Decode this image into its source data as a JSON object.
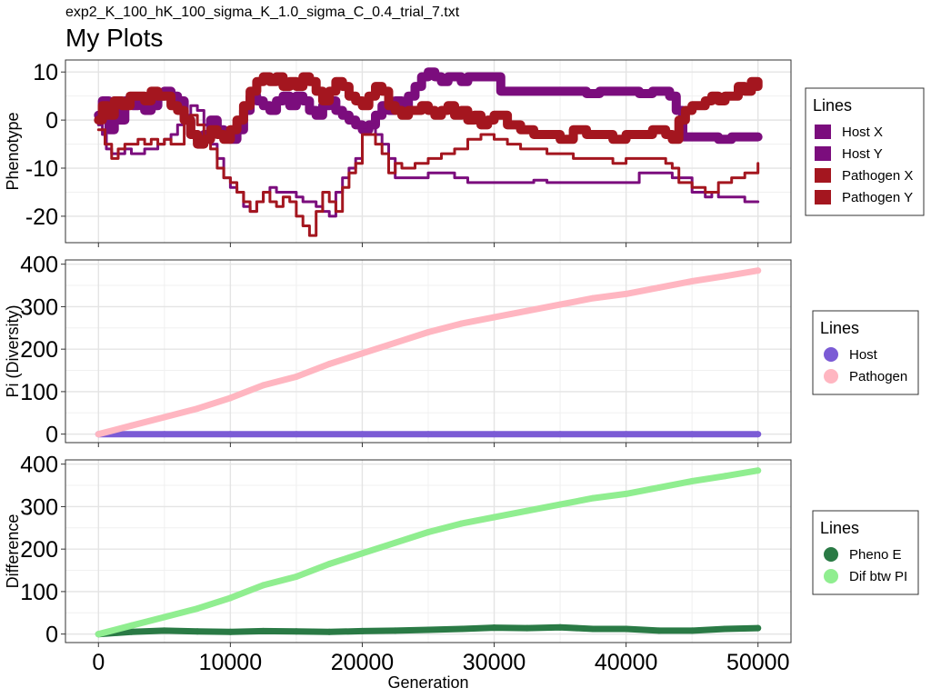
{
  "subtitle": "exp2_K_100_hK_100_sigma_K_1.0_sigma_C_0.4_trial_7.txt",
  "title": "My Plots",
  "chart_data": [
    {
      "type": "line",
      "ylabel": "Phenotype",
      "xlabel": "",
      "xlim": [
        -2500,
        52500
      ],
      "ylim": [
        -25.5,
        12.5
      ],
      "xticks": [
        0,
        10000,
        20000,
        30000,
        40000,
        50000
      ],
      "yticks": [
        10,
        0,
        -10,
        -20
      ],
      "grid": true,
      "legend": {
        "title": "Lines",
        "position": "right",
        "shape": "square",
        "entries": [
          {
            "label": "Host X",
            "color": "#7b0d7d"
          },
          {
            "label": "Host Y",
            "color": "#7b0d7d"
          },
          {
            "label": "Pathogen X",
            "color": "#a4161f"
          },
          {
            "label": "Pathogen Y",
            "color": "#a4161f"
          }
        ]
      },
      "series": [
        {
          "name": "Host X",
          "color": "#7b0d7d",
          "width": 10,
          "x": [
            0,
            300,
            800,
            1200,
            1600,
            2000,
            2600,
            3000,
            3500,
            4000,
            4500,
            5000,
            5500,
            6000,
            6500,
            7000,
            7500,
            8000,
            8500,
            9000,
            9500,
            10000,
            10500,
            11000,
            11500,
            12000,
            12500,
            13000,
            13500,
            14000,
            14500,
            15000,
            15500,
            16000,
            16500,
            17000,
            17500,
            18000,
            18500,
            19000,
            19500,
            20000,
            20500,
            21000,
            21500,
            22000,
            22500,
            23000,
            23500,
            24000,
            24500,
            25000,
            25500,
            26000,
            26500,
            27000,
            27500,
            28000,
            28500,
            29000,
            29500,
            30000,
            30500,
            31000,
            32000,
            33000,
            34000,
            35000,
            36000,
            37000,
            38000,
            39000,
            40000,
            41000,
            42000,
            42800,
            43300,
            43800,
            44300,
            45000,
            46000,
            47000,
            48000,
            49000,
            50000
          ],
          "y": [
            1,
            4,
            -2,
            4,
            0,
            4,
            3,
            4,
            2,
            3,
            5,
            6,
            5,
            4,
            0,
            -3,
            -4,
            -3,
            0,
            -2,
            -3,
            -4,
            -2,
            2,
            5,
            4,
            3,
            2,
            4,
            5,
            3,
            5,
            4,
            2,
            1,
            3,
            4,
            2,
            1,
            0,
            -1,
            -2,
            -1,
            1,
            3,
            2,
            4,
            3,
            5,
            7,
            9,
            10,
            9,
            8,
            9,
            9,
            8,
            9,
            9,
            9,
            9,
            9,
            6,
            6,
            6,
            6,
            6,
            6,
            6,
            5.5,
            6,
            6,
            6,
            5.5,
            6,
            6,
            5,
            2,
            -3.5,
            -3.5,
            -3.5,
            -4,
            -3.5,
            -3.5,
            -3.5
          ]
        },
        {
          "name": "Host Y",
          "color": "#7b0d7d",
          "width": 3,
          "x": [
            0,
            300,
            600,
            1000,
            1500,
            2000,
            2500,
            3000,
            3500,
            4000,
            4500,
            5000,
            5500,
            6000,
            6500,
            7000,
            7500,
            8000,
            8500,
            9000,
            9500,
            10000,
            10500,
            11000,
            11500,
            12000,
            12500,
            13000,
            13500,
            14000,
            14500,
            15000,
            15500,
            16000,
            16500,
            17000,
            17500,
            18000,
            18500,
            19000,
            19500,
            20000,
            20500,
            21000,
            21500,
            22000,
            22500,
            23000,
            24000,
            25000,
            26000,
            27000,
            28000,
            29000,
            30000,
            31000,
            32000,
            33000,
            34000,
            35000,
            36000,
            37000,
            38000,
            39000,
            40000,
            41000,
            42000,
            43000,
            43500,
            44000,
            45000,
            46000,
            46500,
            47000,
            48000,
            49000,
            50000
          ],
          "y": [
            -1,
            -3,
            -6,
            -7,
            -7,
            -6,
            -7,
            -7,
            -6,
            -6,
            -5,
            -4,
            -3,
            -1,
            1,
            3,
            2,
            -1,
            -5,
            -8,
            -12,
            -14,
            -15,
            -18,
            -19,
            -17,
            -15,
            -14,
            -15,
            -15,
            -15,
            -16,
            -17,
            -17,
            -18,
            -19,
            -20,
            -15,
            -12,
            -10,
            -8,
            -2,
            -1,
            -3,
            -5,
            -8,
            -12,
            -12,
            -12,
            -11,
            -11,
            -12,
            -13,
            -13,
            -13,
            -13,
            -13,
            -12.5,
            -13,
            -13,
            -13,
            -13,
            -13,
            -13,
            -13,
            -11,
            -11,
            -11,
            -12,
            -12,
            -15,
            -16,
            -15,
            -16,
            -16,
            -17,
            -17
          ]
        },
        {
          "name": "Pathogen X",
          "color": "#a4161f",
          "width": 10,
          "x": [
            0,
            300,
            700,
            1200,
            1800,
            2400,
            3000,
            3500,
            4000,
            4500,
            5000,
            5500,
            6000,
            6500,
            7000,
            7500,
            8000,
            8500,
            9000,
            9500,
            10000,
            10500,
            11000,
            11500,
            12000,
            12500,
            13000,
            13500,
            14000,
            14500,
            15000,
            15500,
            16000,
            16500,
            17000,
            17500,
            18000,
            18500,
            19000,
            19500,
            20000,
            20500,
            21000,
            21500,
            22000,
            22500,
            23000,
            23500,
            24000,
            24500,
            25000,
            25500,
            26000,
            26500,
            27000,
            27500,
            28000,
            28500,
            29000,
            29500,
            30000,
            31000,
            32000,
            33000,
            34000,
            35000,
            36000,
            37000,
            38000,
            39000,
            40000,
            41000,
            42000,
            43000,
            43500,
            44000,
            44500,
            45000,
            45500,
            46000,
            46500,
            47000,
            47500,
            48000,
            48500,
            49000,
            49500,
            50000
          ],
          "y": [
            0,
            3,
            1,
            4,
            3,
            5,
            5,
            4,
            6,
            5,
            5,
            3,
            2,
            0,
            -3,
            -5,
            -4,
            -2,
            -3,
            -4,
            -2,
            0,
            3,
            6,
            8,
            9,
            8,
            9,
            7,
            8,
            7,
            9,
            8,
            6,
            4,
            6,
            8,
            7,
            5,
            4,
            3,
            5,
            7,
            6,
            3,
            2,
            1,
            2,
            2,
            3,
            2,
            1,
            2,
            3,
            1,
            2,
            0,
            1,
            -1,
            0,
            1,
            -1,
            -2,
            -3,
            -3,
            -4,
            -2,
            -3,
            -3,
            -4,
            -3,
            -3,
            -2,
            -3,
            -4,
            0,
            2,
            3,
            3,
            4,
            5,
            4,
            5,
            5,
            7,
            6,
            8,
            7
          ]
        },
        {
          "name": "Pathogen Y",
          "color": "#a4161f",
          "width": 3,
          "x": [
            0,
            500,
            1000,
            1500,
            2000,
            2500,
            3000,
            3500,
            4000,
            4500,
            5000,
            5500,
            6000,
            6500,
            7000,
            7500,
            8000,
            8500,
            9000,
            9500,
            10000,
            10500,
            11000,
            11500,
            12000,
            12500,
            13000,
            13500,
            14000,
            14500,
            15000,
            15500,
            16000,
            16500,
            17000,
            17500,
            18000,
            18500,
            19000,
            19500,
            20000,
            20500,
            21000,
            21500,
            22000,
            22500,
            23000,
            24000,
            25000,
            26000,
            27000,
            28000,
            29000,
            30000,
            31000,
            32000,
            33000,
            34000,
            35000,
            36000,
            37000,
            38000,
            39000,
            40000,
            41000,
            42000,
            43000,
            43500,
            44000,
            45000,
            46000,
            47000,
            48000,
            49000,
            50000
          ],
          "y": [
            -2,
            -5,
            -8,
            -6,
            -5,
            -5,
            -4,
            -5,
            -4,
            -5,
            -4,
            -5,
            -5,
            0,
            1,
            -1,
            -4,
            -6,
            -10,
            -12,
            -13,
            -15,
            -17,
            -19,
            -17,
            -15,
            -17,
            -18,
            -16,
            -17,
            -20,
            -22,
            -24,
            -19,
            -15,
            -17,
            -19,
            -14,
            -11,
            -9,
            -3,
            -3,
            -5,
            -7,
            -11,
            -9,
            -10,
            -9,
            -8,
            -7,
            -6,
            -4,
            -3,
            -4,
            -5,
            -6,
            -6,
            -7,
            -7,
            -8,
            -8,
            -8,
            -9,
            -8,
            -8,
            -8,
            -9,
            -10,
            -13,
            -14,
            -15,
            -13,
            -12,
            -11,
            -9
          ]
        }
      ]
    },
    {
      "type": "scatter",
      "ylabel": "Pi (Diversity)",
      "xlabel": "",
      "xlim": [
        -2500,
        52500
      ],
      "ylim": [
        -20,
        410
      ],
      "xticks": [
        0,
        10000,
        20000,
        30000,
        40000,
        50000
      ],
      "yticks": [
        400,
        300,
        200,
        100,
        0
      ],
      "grid": true,
      "legend": {
        "title": "Lines",
        "position": "right",
        "shape": "circle",
        "entries": [
          {
            "label": "Host",
            "color": "#7b5bd5"
          },
          {
            "label": "Pathogen",
            "color": "#ffb6c1"
          }
        ]
      },
      "series": [
        {
          "name": "Host",
          "color": "#7b5bd5",
          "x": [
            0,
            5000,
            10000,
            15000,
            20000,
            25000,
            30000,
            35000,
            40000,
            45000,
            50000
          ],
          "y": [
            0,
            0,
            0,
            0,
            0,
            0,
            0,
            0,
            0,
            0,
            0
          ]
        },
        {
          "name": "Pathogen",
          "color": "#ffb6c1",
          "x": [
            0,
            2500,
            5000,
            7500,
            10000,
            12500,
            15000,
            17500,
            20000,
            22500,
            25000,
            27500,
            30000,
            32500,
            35000,
            37500,
            40000,
            42500,
            45000,
            47500,
            50000
          ],
          "y": [
            0,
            20,
            40,
            60,
            85,
            115,
            135,
            165,
            190,
            215,
            240,
            260,
            275,
            290,
            305,
            320,
            330,
            345,
            360,
            372,
            385
          ]
        }
      ]
    },
    {
      "type": "scatter",
      "ylabel": "Difference",
      "xlabel": "Generation",
      "xlim": [
        -2500,
        52500
      ],
      "ylim": [
        -20,
        410
      ],
      "xticks": [
        0,
        10000,
        20000,
        30000,
        40000,
        50000
      ],
      "xticklabels": [
        "0",
        "10000",
        "20000",
        "30000",
        "40000",
        "50000"
      ],
      "yticks": [
        400,
        300,
        200,
        100,
        0
      ],
      "grid": true,
      "legend": {
        "title": "Lines",
        "position": "right",
        "shape": "circle",
        "entries": [
          {
            "label": "Pheno E",
            "color": "#2a7a45"
          },
          {
            "label": "Dif btw PI",
            "color": "#90ee90"
          }
        ]
      },
      "series": [
        {
          "name": "Pheno E",
          "color": "#2a7a45",
          "x": [
            0,
            2500,
            5000,
            7500,
            10000,
            12500,
            15000,
            17500,
            20000,
            22500,
            25000,
            27500,
            30000,
            32500,
            35000,
            37500,
            40000,
            42500,
            45000,
            47500,
            50000
          ],
          "y": [
            0,
            5,
            8,
            6,
            5,
            7,
            6,
            5,
            7,
            8,
            10,
            12,
            15,
            14,
            16,
            12,
            12,
            8,
            8,
            12,
            14
          ]
        },
        {
          "name": "Dif btw PI",
          "color": "#90ee90",
          "x": [
            0,
            2500,
            5000,
            7500,
            10000,
            12500,
            15000,
            17500,
            20000,
            22500,
            25000,
            27500,
            30000,
            32500,
            35000,
            37500,
            40000,
            42500,
            45000,
            47500,
            50000
          ],
          "y": [
            0,
            20,
            40,
            60,
            85,
            115,
            135,
            165,
            190,
            215,
            240,
            260,
            275,
            290,
            305,
            320,
            330,
            345,
            360,
            372,
            385
          ]
        }
      ]
    }
  ]
}
